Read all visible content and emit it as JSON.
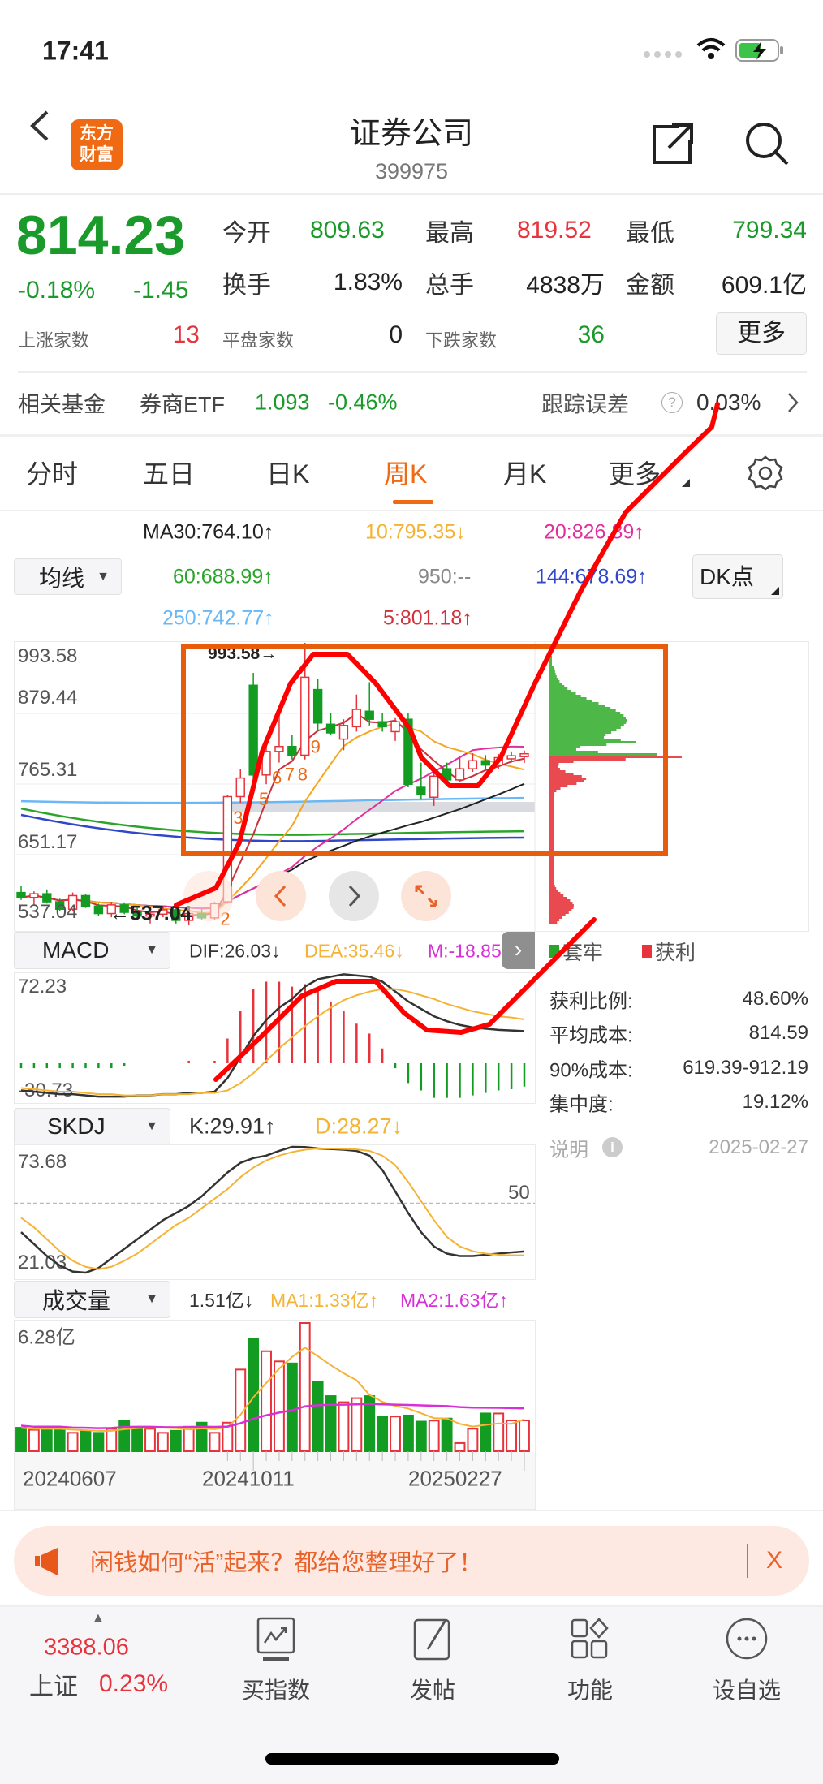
{
  "status_bar": {
    "time": "17:41"
  },
  "header": {
    "title": "证券公司",
    "code": "399975",
    "logo_line1": "东方",
    "logo_line2": "财富"
  },
  "quote": {
    "price": "814.23",
    "change_pct": "-0.18%",
    "change": "-1.45",
    "open_label": "今开",
    "open": "809.63",
    "high_label": "最高",
    "high": "819.52",
    "low_label": "最低",
    "low": "799.34",
    "turnover_label": "换手",
    "turnover": "1.83%",
    "volume_label": "总手",
    "volume": "4838万",
    "amount_label": "金额",
    "amount": "609.1亿",
    "up_label": "上涨家数",
    "up": "13",
    "flat_label": "平盘家数",
    "flat": "0",
    "down_label": "下跌家数",
    "down": "36",
    "more_label": "更多"
  },
  "fund": {
    "label": "相关基金",
    "name": "券商ETF",
    "price": "1.093",
    "change": "-0.46%",
    "tracking_label": "跟踪误差",
    "tracking": "0.03%"
  },
  "tabs": [
    {
      "label": "分时"
    },
    {
      "label": "五日"
    },
    {
      "label": "日K"
    },
    {
      "label": "周K",
      "active": true
    },
    {
      "label": "月K"
    },
    {
      "label": "更多"
    }
  ],
  "ma_legend": {
    "dropdown": "均线",
    "dk_button": "DK点",
    "ma30": "MA30:764.10↑",
    "ma10": "10:795.35↓",
    "ma20": "20:826.89↑",
    "ma60": "60:688.99↑",
    "ma950": "950:--",
    "ma144": "144:678.69↑",
    "ma250": "250:742.77↑",
    "ma5": "5:801.18↑"
  },
  "colors": {
    "up": "#e8333c",
    "down": "#129c22",
    "ma5": "#c8323c",
    "ma10": "#f5a623",
    "ma20": "#e0309e",
    "ma30": "#222222",
    "ma60": "#2aa52a",
    "ma144": "#2f47c8",
    "ma250": "#6ab8f5",
    "accent": "#f06a14",
    "annotation": "#ff0000"
  },
  "chart_data": [
    {
      "type": "candlestick",
      "title": "",
      "y_ticks": [
        "993.58",
        "879.44",
        "765.31",
        "651.17",
        "537.04"
      ],
      "ylim": [
        537.04,
        993.58
      ],
      "high_marker": "993.58→",
      "low_marker": "←537.04",
      "ohlc": [
        [
          590,
          600,
          578,
          582
        ],
        [
          582,
          592,
          570,
          588
        ],
        [
          588,
          595,
          572,
          575
        ],
        [
          575,
          580,
          560,
          563
        ],
        [
          563,
          590,
          560,
          585
        ],
        [
          585,
          588,
          565,
          568
        ],
        [
          568,
          572,
          552,
          556
        ],
        [
          556,
          575,
          550,
          570
        ],
        [
          570,
          574,
          555,
          558
        ],
        [
          558,
          565,
          548,
          552
        ],
        [
          552,
          560,
          540,
          555
        ],
        [
          555,
          568,
          550,
          562
        ],
        [
          562,
          566,
          540,
          545
        ],
        [
          545,
          560,
          537.04,
          556
        ],
        [
          556,
          563,
          545,
          549
        ],
        [
          549,
          575,
          546,
          572
        ],
        [
          575,
          748,
          572,
          745
        ],
        [
          745,
          790,
          735,
          775
        ],
        [
          925,
          945,
          770,
          780
        ],
        [
          780,
          830,
          765,
          818
        ],
        [
          818,
          880,
          800,
          826
        ],
        [
          826,
          845,
          805,
          812
        ],
        [
          812,
          993.58,
          805,
          938
        ],
        [
          918,
          935,
          850,
          864
        ],
        [
          862,
          880,
          845,
          848
        ],
        [
          838,
          870,
          820,
          860
        ],
        [
          858,
          910,
          850,
          886
        ],
        [
          883,
          930,
          860,
          870
        ],
        [
          866,
          880,
          850,
          858
        ],
        [
          850,
          872,
          835,
          866
        ],
        [
          870,
          880,
          760,
          765
        ],
        [
          760,
          800,
          740,
          748
        ],
        [
          744,
          785,
          730,
          778
        ],
        [
          790,
          800,
          768,
          772
        ],
        [
          772,
          808,
          768,
          790
        ],
        [
          790,
          815,
          785,
          803
        ],
        [
          803,
          812,
          790,
          796
        ],
        [
          796,
          814,
          790,
          808
        ],
        [
          806,
          818,
          800,
          811
        ],
        [
          809.63,
          819.52,
          799.34,
          814.23
        ]
      ],
      "ma_levels": {
        "ma60": 688.99,
        "ma144": 678.69,
        "ma250": 742.77
      },
      "td_labels": [
        {
          "i": 16,
          "t": "2"
        },
        {
          "i": 17,
          "t": "3"
        },
        {
          "i": 19,
          "t": "5"
        },
        {
          "i": 20,
          "t": "6"
        },
        {
          "i": 21,
          "t": "7"
        },
        {
          "i": 22,
          "t": "8"
        },
        {
          "i": 23,
          "t": "9"
        }
      ]
    },
    {
      "type": "macd",
      "y_ticks": [
        "72.23",
        "-30.73"
      ],
      "ylim": [
        -30.73,
        72.23
      ],
      "dif": [
        -22,
        -23,
        -24,
        -25,
        -25,
        -26,
        -27,
        -27,
        -27,
        -26,
        -26,
        -25,
        -25,
        -24,
        -24,
        -23,
        -12,
        5,
        22,
        35,
        45,
        52,
        62,
        68,
        70,
        72,
        71,
        70,
        66,
        58,
        50,
        44,
        38,
        34,
        31,
        29,
        28,
        27,
        26.5,
        26.03
      ],
      "dea": [
        -20,
        -21,
        -22,
        -23,
        -23,
        -24,
        -25,
        -25,
        -26,
        -26,
        -26,
        -25,
        -25,
        -25,
        -24,
        -24,
        -22,
        -16,
        -8,
        2,
        12,
        21,
        30,
        38,
        45,
        51,
        55,
        58,
        60,
        60,
        58,
        55,
        52,
        48,
        45,
        42,
        40,
        38,
        37,
        35.46
      ]
    },
    {
      "type": "kdj",
      "y_ticks": [
        "73.68",
        "21.03"
      ],
      "ref_label": "50",
      "ylim": [
        21.03,
        73.68
      ],
      "k": [
        38,
        33,
        28,
        24,
        21.5,
        21.03,
        23,
        27,
        31,
        35,
        39,
        43,
        46,
        49,
        53,
        58,
        63,
        67,
        69,
        70,
        72,
        73.68,
        73.6,
        73,
        72.8,
        72.5,
        72,
        70,
        64,
        55,
        46,
        38,
        32,
        29,
        28,
        28,
        28.5,
        29,
        29.5,
        29.91
      ],
      "d": [
        44,
        40,
        35,
        30,
        26,
        23.5,
        22.5,
        23.5,
        26,
        29,
        33,
        37,
        41,
        44,
        48,
        52,
        56,
        61,
        65,
        68,
        70,
        71.5,
        72.5,
        73,
        73,
        72.8,
        72.6,
        72,
        70,
        66,
        59,
        51,
        43,
        36,
        32,
        30,
        29,
        28.5,
        28.3,
        28.27
      ]
    },
    {
      "type": "bar",
      "y_ticks": [
        "6.28亿"
      ],
      "ylim": [
        0,
        6.28
      ],
      "unit": "亿",
      "values": [
        1.15,
        1.05,
        1.1,
        1.1,
        0.9,
        1.0,
        0.9,
        1.1,
        1.5,
        1.15,
        1.1,
        0.9,
        1.0,
        1.2,
        1.4,
        0.9,
        1.4,
        4.0,
        5.5,
        4.9,
        4.4,
        4.3,
        6.28,
        3.4,
        2.7,
        2.4,
        2.6,
        2.7,
        1.7,
        1.7,
        1.75,
        1.45,
        1.5,
        1.6,
        0.4,
        1.1,
        1.85,
        1.85,
        1.51,
        1.51
      ],
      "x_labels": [
        {
          "i": 5,
          "t": "20240607"
        },
        {
          "i": 18,
          "t": "20241011"
        },
        {
          "i": 39,
          "t": "20250227"
        }
      ]
    }
  ],
  "macd_header": {
    "dropdown": "MACD",
    "dif": "DIF:26.03↓",
    "dea": "DEA:35.46↓",
    "m": "M:-18.85"
  },
  "kdj_header": {
    "dropdown": "SKDJ",
    "k": "K:29.91↑",
    "d": "D:28.27↓"
  },
  "vol_header": {
    "dropdown": "成交量",
    "vol": "1.51亿↓",
    "ma1": "MA1:1.33亿↑",
    "ma2": "MA2:1.63亿↑"
  },
  "chips": {
    "trapped_label": "套牢",
    "profit_label": "获利",
    "stats": [
      {
        "label": "获利比例:",
        "value": "48.60%"
      },
      {
        "label": "平均成本:",
        "value": "814.59"
      },
      {
        "label": "90%成本:",
        "value": "619.39-912.19"
      },
      {
        "label": "集中度:",
        "value": "19.12%"
      }
    ],
    "note_label": "说明",
    "date": "2025-02-27"
  },
  "banner": {
    "text": "闲钱如何“活”起来？都给您整理好了！",
    "close": "X"
  },
  "bottom_bar": {
    "index_value": "3388.06",
    "index_name": "上证",
    "index_change": "0.23%",
    "items": [
      {
        "label": "买指数",
        "icon": "index-chart-icon"
      },
      {
        "label": "发帖",
        "icon": "edit-post-icon"
      },
      {
        "label": "功能",
        "icon": "apps-grid-icon"
      },
      {
        "label": "设自选",
        "icon": "more-circle-icon"
      }
    ]
  }
}
